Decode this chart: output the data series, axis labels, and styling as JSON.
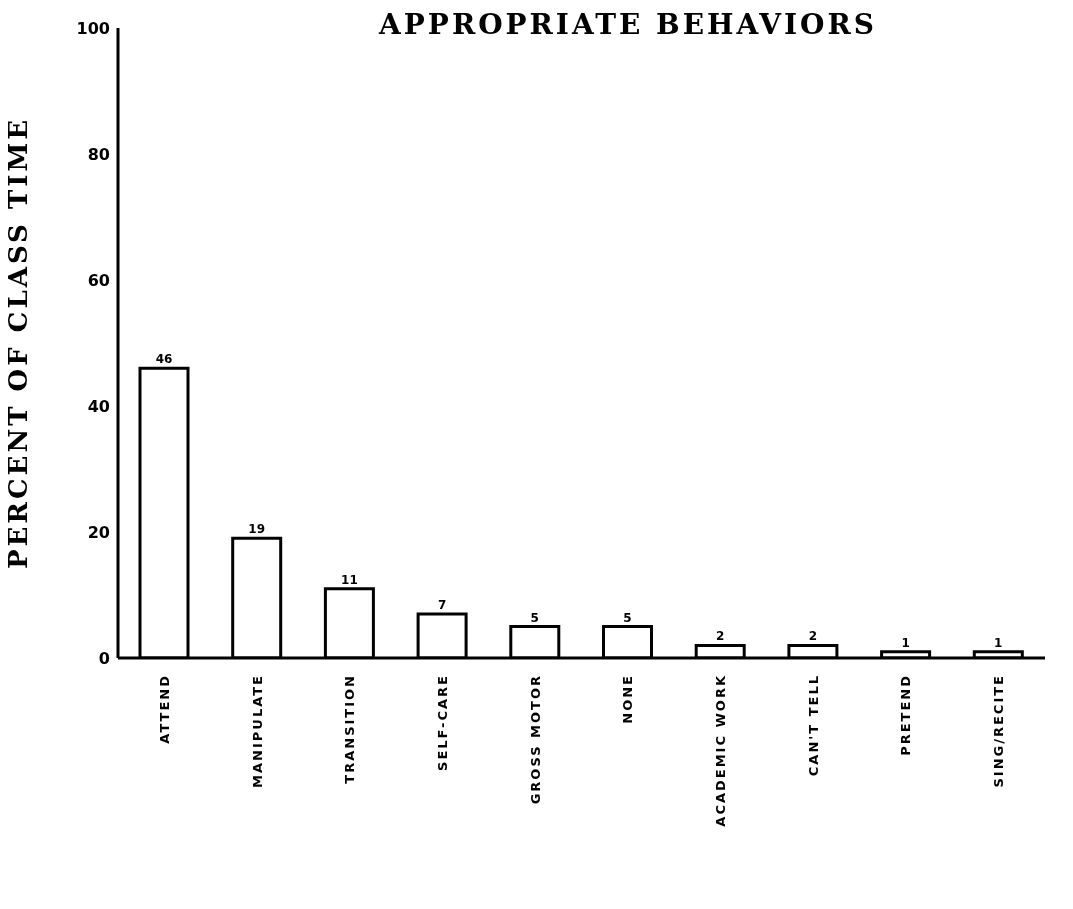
{
  "chart_data": {
    "type": "bar",
    "title": "APPROPRIATE BEHAVIORS",
    "ylabel": "PERCENT OF CLASS TIME",
    "categories": [
      "ATTEND",
      "MANIPULATE",
      "TRANSITION",
      "SELF-CARE",
      "GROSS MOTOR",
      "NONE",
      "ACADEMIC WORK",
      "CAN'T TELL",
      "PRETEND",
      "SING/RECITE"
    ],
    "values": [
      46,
      19,
      11,
      7,
      5,
      5,
      2,
      2,
      1,
      1
    ],
    "color": "#ffffff",
    "ylim": [
      0,
      100
    ],
    "yticks": [
      0,
      20,
      40,
      60,
      80,
      100
    ],
    "grid": false,
    "data_labels": true
  }
}
